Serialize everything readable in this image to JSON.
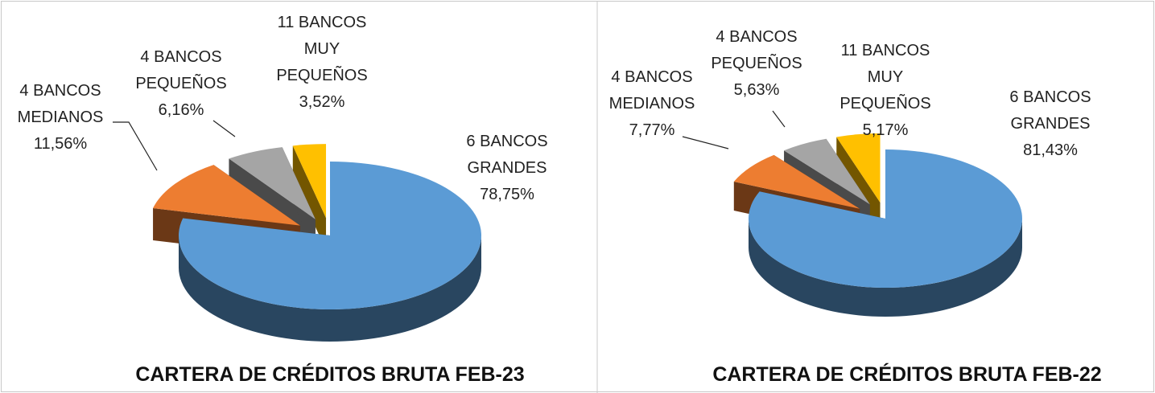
{
  "chart_data": [
    {
      "type": "pie",
      "title": "CARTERA DE CRÉDITOS BRUTA FEB-23",
      "categories": [
        "6 BANCOS GRANDES",
        "4 BANCOS MEDIANOS",
        "4 BANCOS PEQUEÑOS",
        "11 BANCOS MUY PEQUEÑOS"
      ],
      "values": [
        78.75,
        11.56,
        6.16,
        3.52
      ],
      "value_labels": [
        "78,75%",
        "11,56%",
        "6,16%",
        "3,52%"
      ],
      "colors": [
        "#5b9bd5",
        "#ed7d31",
        "#a5a5a5",
        "#ffc000"
      ]
    },
    {
      "type": "pie",
      "title": "CARTERA DE CRÉDITOS BRUTA FEB-22",
      "categories": [
        "6 BANCOS GRANDES",
        "4 BANCOS MEDIANOS",
        "4 BANCOS PEQUEÑOS",
        "11 BANCOS MUY PEQUEÑOS"
      ],
      "values": [
        81.43,
        7.77,
        5.63,
        5.17
      ],
      "value_labels": [
        "81,43%",
        "7,77%",
        "5,63%",
        "5,17%"
      ],
      "colors": [
        "#5b9bd5",
        "#ed7d31",
        "#a5a5a5",
        "#ffc000"
      ]
    }
  ]
}
